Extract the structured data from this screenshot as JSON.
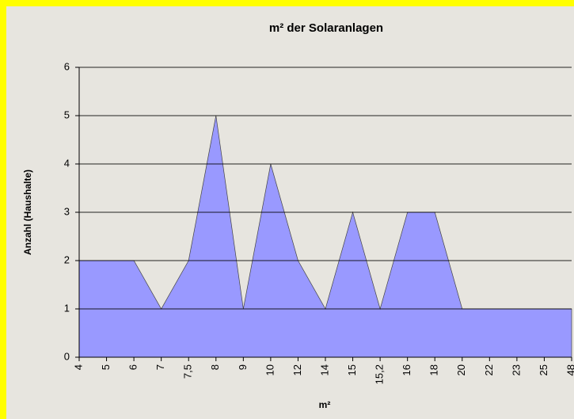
{
  "chart_data": {
    "type": "area",
    "title": "m² der Solaranlagen",
    "x_label": "m²",
    "y_label": "Anzahl (Haushalte)",
    "categories": [
      "4",
      "5",
      "6",
      "7",
      "7,5",
      "8",
      "9",
      "10",
      "12",
      "14",
      "15",
      "15,2",
      "16",
      "18",
      "20",
      "22",
      "23",
      "25",
      "48"
    ],
    "values": [
      2,
      2,
      2,
      1,
      2,
      5,
      1,
      4,
      2,
      1,
      3,
      1,
      3,
      3,
      1,
      1,
      1,
      1,
      1
    ],
    "color": "#9999ff",
    "ylim": [
      0,
      6
    ],
    "yticks": [
      0,
      1,
      2,
      3,
      4,
      5,
      6
    ],
    "grid": true
  }
}
